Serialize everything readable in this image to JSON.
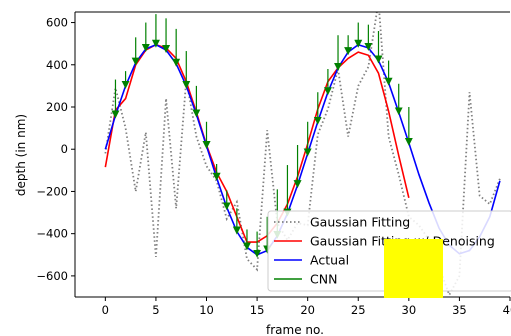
{
  "chart_data": {
    "type": "line",
    "xlabel": "frame no.",
    "ylabel": "depth (in nm)",
    "xlim": [
      -3,
      40
    ],
    "ylim": [
      -700,
      650
    ],
    "xticks": [
      0,
      5,
      10,
      15,
      20,
      25,
      30,
      35,
      40
    ],
    "yticks": [
      -600,
      -400,
      -200,
      0,
      200,
      400,
      600
    ],
    "tick_labels_x": [
      "0",
      "5",
      "10",
      "15",
      "20",
      "25",
      "30",
      "35",
      "40"
    ],
    "tick_labels_y": [
      "−600",
      "−400",
      "−200",
      "0",
      "200",
      "400",
      "600"
    ],
    "legend_position": "lower-right",
    "series": [
      {
        "name": "Gaussian Fitting",
        "color": "#808080",
        "style": "dotted",
        "x": [
          0,
          1,
          2,
          3,
          4,
          5,
          6,
          7,
          8,
          9,
          10,
          11,
          12,
          13,
          14,
          15,
          16,
          17,
          18,
          19,
          20,
          21,
          22,
          23,
          24,
          25,
          26,
          27,
          28,
          29,
          30,
          31,
          32,
          33,
          34,
          35,
          36,
          37,
          38,
          39
        ],
        "y": [
          -20,
          290,
          100,
          -200,
          80,
          -510,
          240,
          -280,
          330,
          60,
          -80,
          -150,
          -330,
          -250,
          -520,
          -570,
          90,
          -350,
          -430,
          -350,
          -360,
          70,
          190,
          380,
          60,
          300,
          390,
          700,
          60,
          -120,
          -320,
          -360,
          -430,
          -560,
          -690,
          -600,
          270,
          -220,
          -260,
          -140
        ]
      },
      {
        "name": "Gaussian Fitting w/ Denoising",
        "color": "#ff0000",
        "style": "solid",
        "x": [
          0,
          1,
          2,
          3,
          4,
          5,
          6,
          7,
          8,
          9,
          10,
          11,
          12,
          13,
          14,
          15,
          16,
          17,
          18,
          19,
          20,
          21,
          22,
          23,
          24,
          25,
          26,
          27,
          28,
          29,
          30
        ],
        "y": [
          -85,
          185,
          240,
          400,
          470,
          495,
          480,
          430,
          320,
          175,
          20,
          -110,
          -200,
          -320,
          -440,
          -440,
          -410,
          -350,
          -260,
          -130,
          25,
          190,
          320,
          385,
          430,
          460,
          445,
          360,
          180,
          -30,
          -230
        ]
      },
      {
        "name": "Actual",
        "color": "#0000ff",
        "style": "solid",
        "x": [
          0,
          1,
          2,
          3,
          4,
          5,
          6,
          7,
          8,
          9,
          10,
          11,
          12,
          13,
          14,
          15,
          16,
          17,
          18,
          19,
          20,
          21,
          22,
          23,
          24,
          25,
          26,
          27,
          28,
          29,
          30,
          31,
          32,
          33,
          34,
          35,
          36,
          37,
          38,
          39
        ],
        "y": [
          0,
          160,
          300,
          410,
          475,
          495,
          470,
          405,
          300,
          165,
          15,
          -135,
          -275,
          -390,
          -465,
          -500,
          -480,
          -410,
          -305,
          -170,
          -20,
          130,
          270,
          385,
          460,
          495,
          480,
          420,
          315,
          175,
          30,
          -120,
          -255,
          -375,
          -455,
          -495,
          -480,
          -415,
          -320,
          -150
        ]
      },
      {
        "name": "CNN",
        "color": "#008000",
        "style": "arrows",
        "x": [
          1,
          2,
          3,
          4,
          5,
          6,
          7,
          8,
          9,
          10,
          11,
          12,
          13,
          14,
          15,
          16,
          17,
          18,
          19,
          20,
          21,
          22,
          23,
          24,
          25,
          26,
          27,
          28,
          29,
          30
        ],
        "y_start": [
          160,
          300,
          410,
          475,
          495,
          470,
          405,
          300,
          165,
          15,
          -135,
          -275,
          -390,
          -465,
          -500,
          -480,
          -410,
          -305,
          -170,
          -20,
          130,
          270,
          385,
          460,
          495,
          480,
          420,
          315,
          175,
          30
        ],
        "y_end": [
          330,
          370,
          530,
          600,
          640,
          620,
          570,
          465,
          300,
          130,
          -70,
          -195,
          -280,
          -380,
          -390,
          -320,
          -190,
          -75,
          20,
          130,
          270,
          380,
          540,
          540,
          600,
          590,
          560,
          420,
          310,
          200
        ]
      }
    ]
  },
  "legend": {
    "entries": [
      {
        "label": "Gaussian Fitting",
        "color": "#808080",
        "style": "dotted"
      },
      {
        "label": "Gaussian Fitting w/ Denoising",
        "color": "#ff0000",
        "style": "solid"
      },
      {
        "label": "Actual",
        "color": "#0000ff",
        "style": "solid"
      },
      {
        "label": "CNN",
        "color": "#008000",
        "style": "solid"
      }
    ]
  },
  "colors": {
    "highlight_box": "#ffff00"
  }
}
